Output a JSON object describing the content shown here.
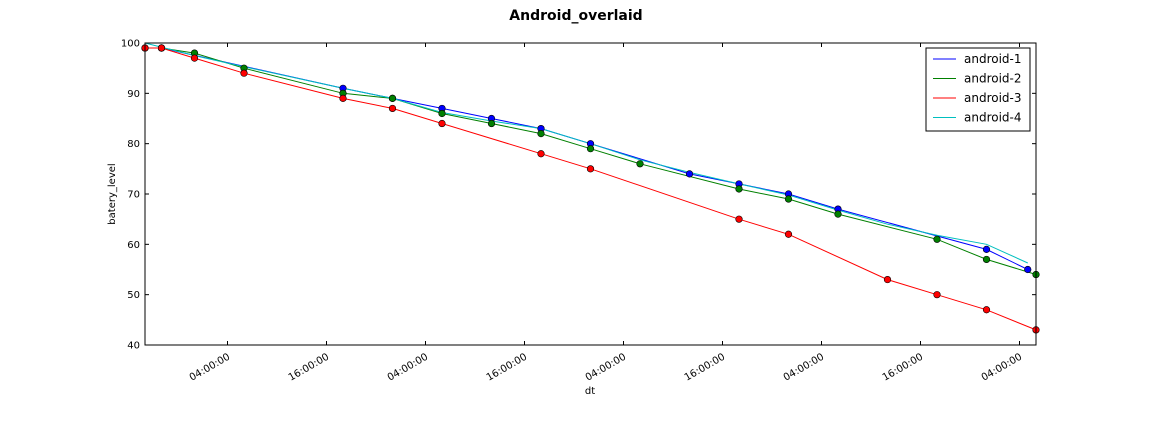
{
  "chart_data": {
    "type": "line",
    "title": "Android_overlaid",
    "xlabel": "dt",
    "ylabel": "batery_level",
    "ylim": [
      40,
      100
    ],
    "xlim": [
      0,
      108
    ],
    "x_ticks": [
      {
        "x": 10,
        "label": "04:00:00"
      },
      {
        "x": 22,
        "label": "16:00:00"
      },
      {
        "x": 34,
        "label": "04:00:00"
      },
      {
        "x": 46,
        "label": "16:00:00"
      },
      {
        "x": 58,
        "label": "04:00:00"
      },
      {
        "x": 70,
        "label": "16:00:00"
      },
      {
        "x": 82,
        "label": "04:00:00"
      },
      {
        "x": 94,
        "label": "16:00:00"
      },
      {
        "x": 106,
        "label": "04:00:00"
      }
    ],
    "y_ticks": [
      40,
      50,
      60,
      70,
      80,
      90,
      100
    ],
    "grid": false,
    "legend": "top-right",
    "series": [
      {
        "name": "android-1",
        "color": "#0000ff",
        "points": [
          {
            "x": 0,
            "y": 99,
            "m": false
          },
          {
            "x": 2,
            "y": 99,
            "m": true
          },
          {
            "x": 24,
            "y": 91,
            "m": true
          },
          {
            "x": 30,
            "y": 89,
            "m": true
          },
          {
            "x": 36,
            "y": 87,
            "m": true
          },
          {
            "x": 42,
            "y": 85,
            "m": true
          },
          {
            "x": 48,
            "y": 83,
            "m": true
          },
          {
            "x": 54,
            "y": 80,
            "m": true
          },
          {
            "x": 66,
            "y": 74,
            "m": true
          },
          {
            "x": 72,
            "y": 72,
            "m": true
          },
          {
            "x": 78,
            "y": 70,
            "m": true
          },
          {
            "x": 84,
            "y": 67,
            "m": true
          },
          {
            "x": 102,
            "y": 59,
            "m": true
          },
          {
            "x": 107,
            "y": 55,
            "m": true
          }
        ]
      },
      {
        "name": "android-2",
        "color": "#008000",
        "points": [
          {
            "x": 0,
            "y": 99,
            "m": true
          },
          {
            "x": 2,
            "y": 99,
            "m": true
          },
          {
            "x": 6,
            "y": 98,
            "m": true
          },
          {
            "x": 12,
            "y": 95,
            "m": true
          },
          {
            "x": 24,
            "y": 90,
            "m": true
          },
          {
            "x": 30,
            "y": 89,
            "m": true
          },
          {
            "x": 36,
            "y": 86,
            "m": true
          },
          {
            "x": 42,
            "y": 84,
            "m": true
          },
          {
            "x": 48,
            "y": 82,
            "m": true
          },
          {
            "x": 54,
            "y": 79,
            "m": true
          },
          {
            "x": 60,
            "y": 76,
            "m": true
          },
          {
            "x": 72,
            "y": 71,
            "m": true
          },
          {
            "x": 78,
            "y": 69,
            "m": true
          },
          {
            "x": 84,
            "y": 66,
            "m": true
          },
          {
            "x": 96,
            "y": 61,
            "m": true
          },
          {
            "x": 102,
            "y": 57,
            "m": true
          },
          {
            "x": 108,
            "y": 54,
            "m": true
          }
        ]
      },
      {
        "name": "android-3",
        "color": "#ff0000",
        "points": [
          {
            "x": 0,
            "y": 99,
            "m": true
          },
          {
            "x": 2,
            "y": 99,
            "m": true
          },
          {
            "x": 6,
            "y": 97,
            "m": true
          },
          {
            "x": 12,
            "y": 94,
            "m": true
          },
          {
            "x": 24,
            "y": 89,
            "m": true
          },
          {
            "x": 30,
            "y": 87,
            "m": true
          },
          {
            "x": 36,
            "y": 84,
            "m": true
          },
          {
            "x": 48,
            "y": 78,
            "m": true
          },
          {
            "x": 54,
            "y": 75,
            "m": true
          },
          {
            "x": 72,
            "y": 65,
            "m": true
          },
          {
            "x": 78,
            "y": 62,
            "m": true
          },
          {
            "x": 90,
            "y": 53,
            "m": true
          },
          {
            "x": 96,
            "y": 50,
            "m": true
          },
          {
            "x": 102,
            "y": 47,
            "m": true
          },
          {
            "x": 108,
            "y": 43,
            "m": true
          }
        ]
      },
      {
        "name": "android-4",
        "color": "#00bfbf",
        "points": [
          {
            "x": 0,
            "y": 100,
            "m": false
          },
          {
            "x": 6,
            "y": 97.5,
            "m": false
          },
          {
            "x": 12,
            "y": 95.3,
            "m": false
          },
          {
            "x": 24,
            "y": 91,
            "m": false
          },
          {
            "x": 30,
            "y": 89,
            "m": false
          },
          {
            "x": 36,
            "y": 86.2,
            "m": false
          },
          {
            "x": 42,
            "y": 84.5,
            "m": false
          },
          {
            "x": 48,
            "y": 83,
            "m": false
          },
          {
            "x": 54,
            "y": 80,
            "m": false
          },
          {
            "x": 60,
            "y": 76.8,
            "m": false
          },
          {
            "x": 66,
            "y": 74.3,
            "m": false
          },
          {
            "x": 72,
            "y": 72,
            "m": false
          },
          {
            "x": 78,
            "y": 69.8,
            "m": false
          },
          {
            "x": 84,
            "y": 66.8,
            "m": false
          },
          {
            "x": 90,
            "y": 64,
            "m": false
          },
          {
            "x": 96,
            "y": 61.8,
            "m": false
          },
          {
            "x": 102,
            "y": 60,
            "m": false
          },
          {
            "x": 107,
            "y": 56.3,
            "m": false
          }
        ]
      }
    ]
  }
}
